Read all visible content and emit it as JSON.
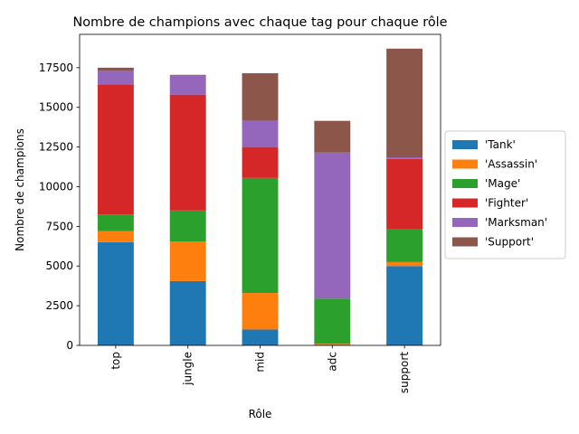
{
  "chart_data": {
    "type": "bar",
    "stacked": true,
    "title": "Nombre de champions avec chaque tag pour chaque rôle",
    "xlabel": "Rôle",
    "ylabel": "Nombre de champions",
    "categories": [
      "top",
      "jungle",
      "mid",
      "adc",
      "support"
    ],
    "ylim": [
      0,
      19600
    ],
    "yticks": [
      0,
      2500,
      5000,
      7500,
      10000,
      12500,
      15000,
      17500
    ],
    "ytick_labels": [
      "0",
      "2500",
      "5000",
      "7500",
      "10000",
      "12500",
      "15000",
      "17500"
    ],
    "grid": false,
    "legend_position": "right",
    "series": [
      {
        "name": "'Tank'",
        "color": "#1f77b4",
        "values": [
          6500,
          4050,
          1000,
          0,
          5000
        ]
      },
      {
        "name": "'Assassin'",
        "color": "#ff7f0e",
        "values": [
          700,
          2500,
          2300,
          100,
          250
        ]
      },
      {
        "name": "'Mage'",
        "color": "#2ca02c",
        "values": [
          1050,
          1950,
          7250,
          2850,
          2100
        ]
      },
      {
        "name": "'Fighter'",
        "color": "#d62728",
        "values": [
          8200,
          7300,
          1950,
          0,
          4400
        ]
      },
      {
        "name": "'Marksman'",
        "color": "#9467bd",
        "values": [
          850,
          1200,
          1650,
          9200,
          100
        ]
      },
      {
        "name": "'Support'",
        "color": "#8c564b",
        "values": [
          200,
          50,
          3000,
          2000,
          6850
        ]
      }
    ]
  }
}
